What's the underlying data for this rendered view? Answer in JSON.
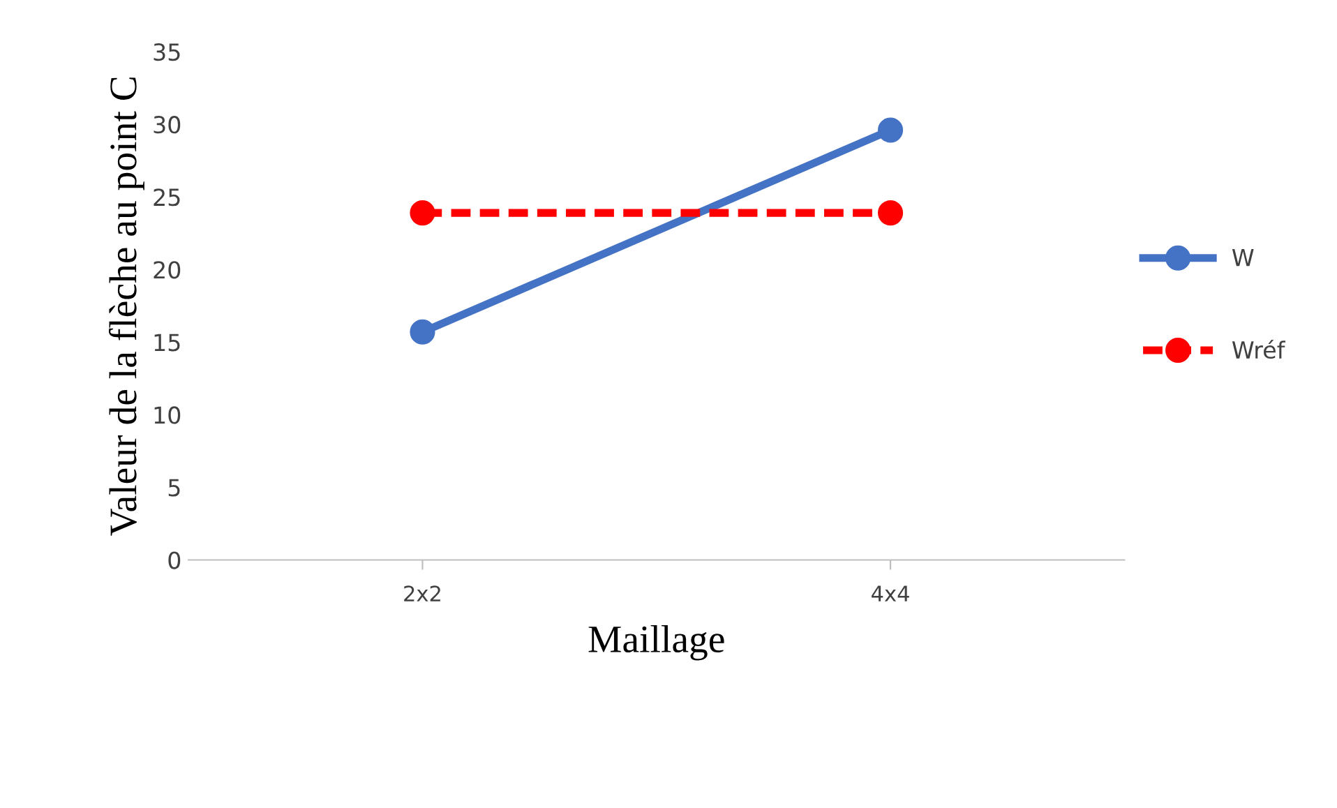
{
  "chart_data": {
    "type": "line",
    "xlabel": "Maillage",
    "ylabel": "Valeur de la flèche au point C",
    "categories": [
      "2x2",
      "4x4"
    ],
    "series": [
      {
        "name": "W",
        "color": "#4472c4",
        "values": [
          15.7,
          29.6
        ],
        "line_style": "solid"
      },
      {
        "name": "Wréf",
        "color": "#ff0000",
        "values": [
          23.9,
          23.9
        ],
        "line_style": "dashed"
      }
    ],
    "ylim": [
      0,
      35
    ],
    "yticks": [
      0,
      5,
      10,
      15,
      20,
      25,
      30,
      35
    ],
    "grid": false,
    "legend": "right",
    "marker": "circle"
  }
}
